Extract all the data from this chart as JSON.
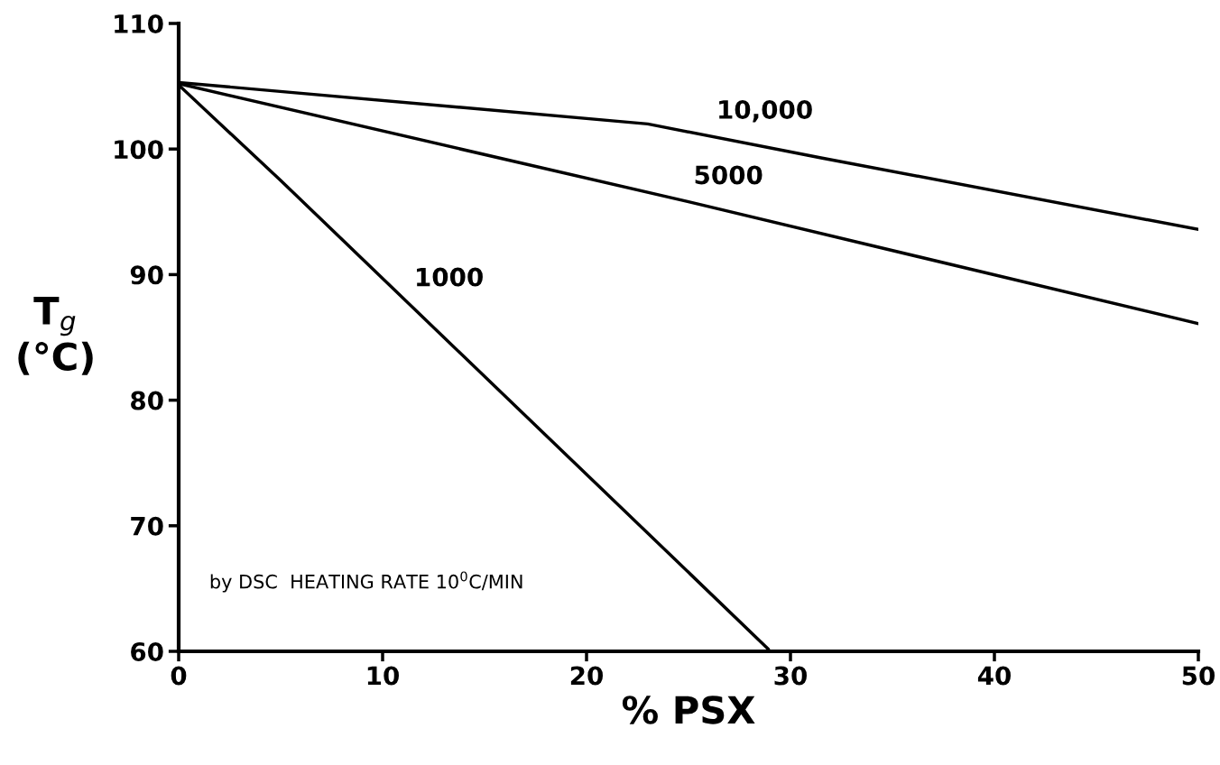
{
  "chart_data": {
    "type": "line",
    "xlabel": "% PSX",
    "ylabel": "T$_{g}$\n(°C)",
    "xlim": [
      0,
      50
    ],
    "ylim": [
      60,
      110
    ],
    "xticks": [
      0,
      10,
      20,
      30,
      40,
      50
    ],
    "yticks": [
      60,
      70,
      80,
      90,
      100,
      110
    ],
    "grid": false,
    "legend": false,
    "marker": "none",
    "line_style": "solid",
    "series": [
      {
        "name": "10,000",
        "color": "#000000",
        "x": [
          0,
          23,
          31.5,
          50
        ],
        "values": [
          105.3,
          102.0,
          99.3,
          93.6
        ]
      },
      {
        "name": "5000",
        "color": "#000000",
        "x": [
          0,
          25,
          50
        ],
        "values": [
          105.2,
          95.8,
          86.1
        ]
      },
      {
        "name": "1000",
        "color": "#000000",
        "x": [
          0,
          5,
          28.9
        ],
        "values": [
          105.1,
          97.5,
          60.2
        ]
      }
    ],
    "annotations": [
      "by DSC  HEATING RATE 10$^{0}$C/MIN"
    ]
  }
}
